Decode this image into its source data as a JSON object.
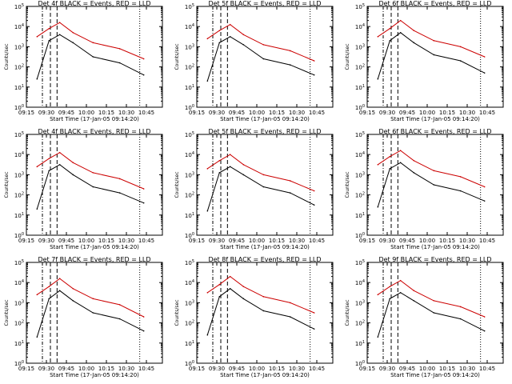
{
  "chart_data": [
    {
      "type": "line",
      "title": "Det 4f BLACK = Events, RED = LLD",
      "xlabel": "Start Time (17-Jan-05 09:14:20)",
      "ylabel": "Counts/sec",
      "xticks": [
        "09:15",
        "09:30",
        "09:45",
        "10:00",
        "10:15",
        "10:30",
        "10:45"
      ],
      "yticks": [
        "10^0",
        "10^1",
        "10^2",
        "10^3",
        "10^4",
        "10^5"
      ],
      "xlim_minutes": [
        555,
        657
      ],
      "ylim_log10": [
        0,
        5
      ],
      "series": [
        {
          "color": "#000000",
          "values_log10": [
            1.4,
            3.3,
            3.6,
            3.2,
            2.5,
            2.2,
            1.6
          ]
        },
        {
          "color": "#cc0000",
          "values_log10": [
            3.5,
            3.9,
            4.2,
            3.7,
            3.2,
            2.9,
            2.4
          ]
        }
      ],
      "vlines_minutes": [
        [
          567,
          "dash-dot"
        ],
        [
          573,
          "dash"
        ],
        [
          578,
          "dash"
        ],
        [
          640,
          "dot"
        ]
      ]
    },
    {
      "type": "line",
      "title": "Det 5f BLACK = Events, RED = LLD",
      "xlabel": "Start Time (17-Jan-05 09:14:20)",
      "ylabel": "Counts/sec",
      "xticks": [
        "09:15",
        "09:30",
        "09:45",
        "10:00",
        "10:15",
        "10:30",
        "10:45"
      ],
      "yticks": [
        "10^0",
        "10^1",
        "10^2",
        "10^3",
        "10^4",
        "10^5"
      ],
      "xlim_minutes": [
        555,
        657
      ],
      "ylim_log10": [
        0,
        5
      ],
      "series": [
        {
          "color": "#000000",
          "values_log10": [
            1.3,
            3.2,
            3.5,
            3.1,
            2.4,
            2.1,
            1.6
          ]
        },
        {
          "color": "#cc0000",
          "values_log10": [
            3.4,
            3.8,
            4.1,
            3.6,
            3.1,
            2.8,
            2.3
          ]
        }
      ],
      "vlines_minutes": [
        [
          567,
          "dash-dot"
        ],
        [
          573,
          "dash"
        ],
        [
          578,
          "dash"
        ],
        [
          640,
          "dot"
        ]
      ]
    },
    {
      "type": "line",
      "title": "Det 6f BLACK = Events, RED = LLD",
      "xlabel": "Start Time (17-Jan-05 09:14:20)",
      "ylabel": "Counts/sec",
      "xticks": [
        "09:15",
        "09:30",
        "09:45",
        "10:00",
        "10:15",
        "10:30",
        "10:45"
      ],
      "yticks": [
        "10^0",
        "10^1",
        "10^2",
        "10^3",
        "10^4",
        "10^5"
      ],
      "xlim_minutes": [
        555,
        657
      ],
      "ylim_log10": [
        0,
        5
      ],
      "series": [
        {
          "color": "#000000",
          "values_log10": [
            1.4,
            3.3,
            3.7,
            3.2,
            2.6,
            2.3,
            1.7
          ]
        },
        {
          "color": "#cc0000",
          "values_log10": [
            3.5,
            3.9,
            4.3,
            3.8,
            3.3,
            3.0,
            2.5
          ]
        }
      ],
      "vlines_minutes": [
        [
          567,
          "dash-dot"
        ],
        [
          573,
          "dash"
        ],
        [
          578,
          "dash"
        ],
        [
          640,
          "dot"
        ]
      ]
    },
    {
      "type": "line",
      "title": "Det 4f BLACK = Events, RED = LLD",
      "xlabel": "Start Time (17-Jan-05 09:14:20)",
      "ylabel": "Counts/sec",
      "xticks": [
        "09:15",
        "09:30",
        "09:45",
        "10:00",
        "10:15",
        "10:30",
        "10:45"
      ],
      "yticks": [
        "10^0",
        "10^1",
        "10^2",
        "10^3",
        "10^4",
        "10^5"
      ],
      "xlim_minutes": [
        555,
        657
      ],
      "ylim_log10": [
        0,
        5
      ],
      "series": [
        {
          "color": "#000000",
          "values_log10": [
            1.3,
            3.2,
            3.5,
            3.0,
            2.4,
            2.1,
            1.6
          ]
        },
        {
          "color": "#cc0000",
          "values_log10": [
            3.4,
            3.8,
            4.1,
            3.6,
            3.1,
            2.8,
            2.3
          ]
        }
      ],
      "vlines_minutes": [
        [
          567,
          "dash-dot"
        ],
        [
          573,
          "dash"
        ],
        [
          578,
          "dash"
        ],
        [
          640,
          "dot"
        ]
      ]
    },
    {
      "type": "line",
      "title": "Det 5f BLACK = Events, RED = LLD",
      "xlabel": "Start Time (17-Jan-05 09:14:20)",
      "ylabel": "Counts/sec",
      "xticks": [
        "09:15",
        "09:30",
        "09:45",
        "10:00",
        "10:15",
        "10:30",
        "10:45"
      ],
      "yticks": [
        "10^0",
        "10^1",
        "10^2",
        "10^3",
        "10^4",
        "10^5"
      ],
      "xlim_minutes": [
        555,
        657
      ],
      "ylim_log10": [
        0,
        5
      ],
      "series": [
        {
          "color": "#000000",
          "values_log10": [
            1.2,
            3.1,
            3.4,
            3.0,
            2.4,
            2.1,
            1.5
          ]
        },
        {
          "color": "#cc0000",
          "values_log10": [
            3.3,
            3.7,
            4.0,
            3.5,
            3.0,
            2.7,
            2.2
          ]
        }
      ],
      "vlines_minutes": [
        [
          567,
          "dash-dot"
        ],
        [
          573,
          "dash"
        ],
        [
          578,
          "dash"
        ],
        [
          640,
          "dot"
        ]
      ]
    },
    {
      "type": "line",
      "title": "Det 6f BLACK = Events, RED = LLD",
      "xlabel": "Start Time (17-Jan-05 09:14:20)",
      "ylabel": "Counts/sec",
      "xticks": [
        "09:15",
        "09:30",
        "09:45",
        "10:00",
        "10:15",
        "10:30",
        "10:45"
      ],
      "yticks": [
        "10^0",
        "10^1",
        "10^2",
        "10^3",
        "10^4",
        "10^5"
      ],
      "xlim_minutes": [
        555,
        657
      ],
      "ylim_log10": [
        0,
        5
      ],
      "series": [
        {
          "color": "#000000",
          "values_log10": [
            1.4,
            3.3,
            3.6,
            3.1,
            2.5,
            2.2,
            1.7
          ]
        },
        {
          "color": "#cc0000",
          "values_log10": [
            3.5,
            3.9,
            4.2,
            3.7,
            3.2,
            2.9,
            2.4
          ]
        }
      ],
      "vlines_minutes": [
        [
          567,
          "dash-dot"
        ],
        [
          573,
          "dash"
        ],
        [
          578,
          "dash"
        ],
        [
          640,
          "dot"
        ]
      ]
    },
    {
      "type": "line",
      "title": "Det 7f BLACK = Events, RED = LLD",
      "xlabel": "Start Time (17-Jan-05 09:14:20)",
      "ylabel": "Counts/sec",
      "xticks": [
        "09:15",
        "09:30",
        "09:45",
        "10:00",
        "10:15",
        "10:30",
        "10:45"
      ],
      "yticks": [
        "10^0",
        "10^1",
        "10^2",
        "10^3",
        "10^4",
        "10^5"
      ],
      "xlim_minutes": [
        555,
        657
      ],
      "ylim_log10": [
        0,
        5
      ],
      "series": [
        {
          "color": "#000000",
          "values_log10": [
            1.3,
            3.2,
            3.6,
            3.1,
            2.5,
            2.2,
            1.6
          ]
        },
        {
          "color": "#cc0000",
          "values_log10": [
            3.4,
            3.8,
            4.2,
            3.7,
            3.2,
            2.9,
            2.3
          ]
        }
      ],
      "vlines_minutes": [
        [
          567,
          "dash-dot"
        ],
        [
          573,
          "dash"
        ],
        [
          578,
          "dash"
        ],
        [
          640,
          "dot"
        ]
      ]
    },
    {
      "type": "line",
      "title": "Det 8f BLACK = Events, RED = LLD",
      "xlabel": "Start Time (17-Jan-05 09:14:20)",
      "ylabel": "Counts/sec",
      "xticks": [
        "09:15",
        "09:30",
        "09:45",
        "10:00",
        "10:15",
        "10:30",
        "10:45"
      ],
      "yticks": [
        "10^0",
        "10^1",
        "10^2",
        "10^3",
        "10^4",
        "10^5"
      ],
      "xlim_minutes": [
        555,
        657
      ],
      "ylim_log10": [
        0,
        5
      ],
      "series": [
        {
          "color": "#000000",
          "values_log10": [
            1.4,
            3.3,
            3.7,
            3.2,
            2.6,
            2.3,
            1.7
          ]
        },
        {
          "color": "#cc0000",
          "values_log10": [
            3.5,
            3.9,
            4.3,
            3.8,
            3.3,
            3.0,
            2.5
          ]
        }
      ],
      "vlines_minutes": [
        [
          567,
          "dash-dot"
        ],
        [
          573,
          "dash"
        ],
        [
          578,
          "dash"
        ],
        [
          640,
          "dot"
        ]
      ]
    },
    {
      "type": "line",
      "title": "Det 9f BLACK = Events, RED = LLD",
      "xlabel": "Start Time (17-Jan-05 09:14:20)",
      "ylabel": "Counts/sec",
      "xticks": [
        "09:15",
        "09:30",
        "09:45",
        "10:00",
        "10:15",
        "10:30",
        "10:45"
      ],
      "yticks": [
        "10^0",
        "10^1",
        "10^2",
        "10^3",
        "10^4",
        "10^5"
      ],
      "xlim_minutes": [
        555,
        657
      ],
      "ylim_log10": [
        0,
        5
      ],
      "series": [
        {
          "color": "#000000",
          "values_log10": [
            1.3,
            3.2,
            3.5,
            3.1,
            2.5,
            2.2,
            1.6
          ]
        },
        {
          "color": "#cc0000",
          "values_log10": [
            3.4,
            3.8,
            4.1,
            3.6,
            3.1,
            2.8,
            2.3
          ]
        }
      ],
      "vlines_minutes": [
        [
          567,
          "dash-dot"
        ],
        [
          573,
          "dash"
        ],
        [
          578,
          "dash"
        ],
        [
          640,
          "dot"
        ]
      ]
    }
  ]
}
